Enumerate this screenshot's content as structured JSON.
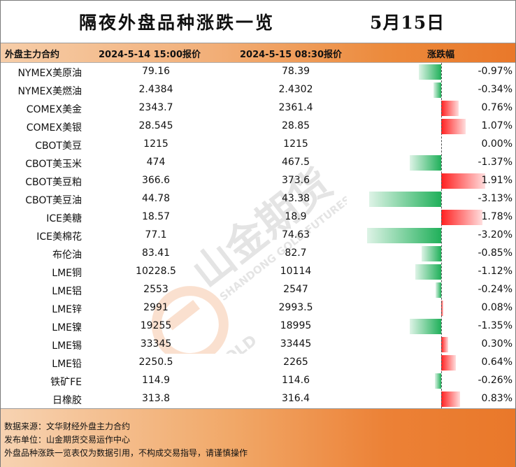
{
  "title": "隔夜外盘品种涨跌一览",
  "date": "5月15日",
  "headers": {
    "name": "外盘主力合约",
    "prev": "2024-5-14 15:00报价",
    "cur": "2024-5-15 08:30报价",
    "change": "涨跌幅"
  },
  "rows": [
    {
      "name": "NYMEX美原油",
      "prev": "79.16",
      "cur": "78.39",
      "pct_label": "-0.97%",
      "pct": -0.97
    },
    {
      "name": "NYMEX美燃油",
      "prev": "2.4384",
      "cur": "2.4302",
      "pct_label": "-0.34%",
      "pct": -0.34
    },
    {
      "name": "COMEX美金",
      "prev": "2343.7",
      "cur": "2361.4",
      "pct_label": "0.76%",
      "pct": 0.76
    },
    {
      "name": "COMEX美银",
      "prev": "28.545",
      "cur": "28.85",
      "pct_label": "1.07%",
      "pct": 1.07
    },
    {
      "name": "CBOT美豆",
      "prev": "1215",
      "cur": "1215",
      "pct_label": "0.00%",
      "pct": 0.0
    },
    {
      "name": "CBOT美玉米",
      "prev": "474",
      "cur": "467.5",
      "pct_label": "-1.37%",
      "pct": -1.37
    },
    {
      "name": "CBOT美豆粕",
      "prev": "366.6",
      "cur": "373.6",
      "pct_label": "1.91%",
      "pct": 1.91
    },
    {
      "name": "CBOT美豆油",
      "prev": "44.78",
      "cur": "43.38",
      "pct_label": "-3.13%",
      "pct": -3.13
    },
    {
      "name": "ICE美糖",
      "prev": "18.57",
      "cur": "18.9",
      "pct_label": "1.78%",
      "pct": 1.78
    },
    {
      "name": "ICE美棉花",
      "prev": "77.1",
      "cur": "74.63",
      "pct_label": "-3.20%",
      "pct": -3.2
    },
    {
      "name": "布伦油",
      "prev": "83.41",
      "cur": "82.7",
      "pct_label": "-0.85%",
      "pct": -0.85
    },
    {
      "name": "LME铜",
      "prev": "10228.5",
      "cur": "10114",
      "pct_label": "-1.12%",
      "pct": -1.12
    },
    {
      "name": "LME铝",
      "prev": "2553",
      "cur": "2547",
      "pct_label": "-0.24%",
      "pct": -0.24
    },
    {
      "name": "LME锌",
      "prev": "2991",
      "cur": "2993.5",
      "pct_label": "0.08%",
      "pct": 0.08
    },
    {
      "name": "LME镍",
      "prev": "19255",
      "cur": "18995",
      "pct_label": "-1.35%",
      "pct": -1.35
    },
    {
      "name": "LME锡",
      "prev": "33345",
      "cur": "33445",
      "pct_label": "0.30%",
      "pct": 0.3
    },
    {
      "name": "LME铅",
      "prev": "2250.5",
      "cur": "2265",
      "pct_label": "0.64%",
      "pct": 0.64
    },
    {
      "name": "铁矿FE",
      "prev": "114.9",
      "cur": "114.6",
      "pct_label": "-0.26%",
      "pct": -0.26
    },
    {
      "name": "日橡胶",
      "prev": "313.8",
      "cur": "316.4",
      "pct_label": "0.83%",
      "pct": 0.83
    }
  ],
  "colors": {
    "positive": "#ff2020",
    "negative": "#20b05a",
    "accent": "#e9782a"
  },
  "watermark": {
    "brand": "山金期货",
    "sub": "SHANDONG GOLD FUTURES",
    "logo_text": "SD-GOLD"
  },
  "footer": {
    "source": "数据来源：文华财经外盘主力合约",
    "publisher": "发布单位：山金期货交易运作中心",
    "disclaimer": "外盘品种涨跌一览表仅为数据引用，不构成交易指导，请谨慎操作"
  }
}
